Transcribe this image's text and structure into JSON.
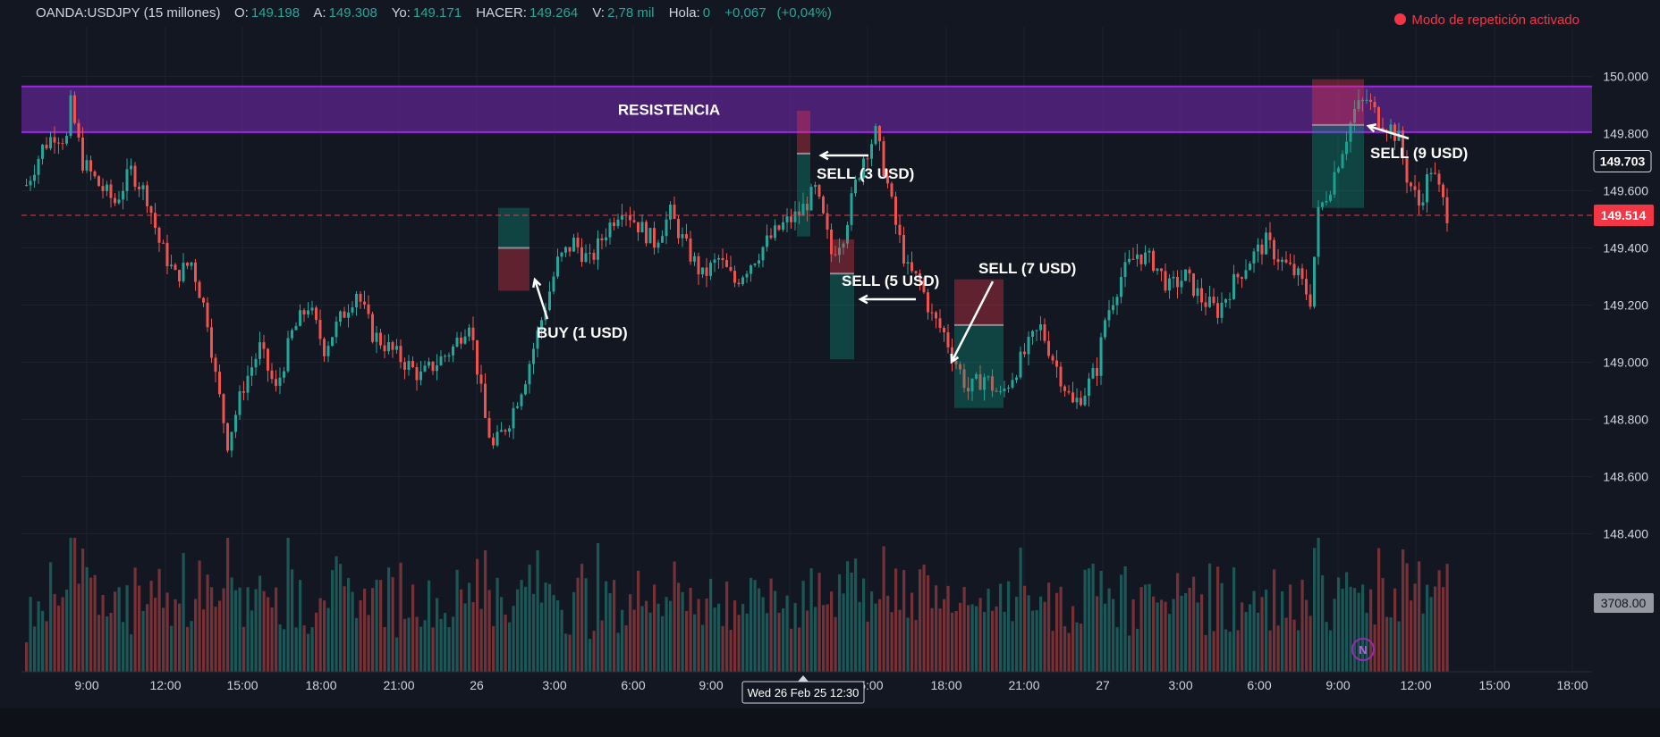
{
  "header": {
    "symbol": "OANDA:USDJPY (15 millones)",
    "fields": [
      {
        "label": "O:",
        "value": "149.198"
      },
      {
        "label": "A:",
        "value": "149.308"
      },
      {
        "label": "Yo:",
        "value": "149.171"
      },
      {
        "label": "HACER:",
        "value": "149.264"
      },
      {
        "label": "V:",
        "value": "2,78 mil"
      },
      {
        "label": "Hola:",
        "value": "0"
      }
    ],
    "change": "+0,067",
    "change_pct": "(+0,04%)"
  },
  "replay_label": "Modo de repetición activado",
  "colors": {
    "background": "#131722",
    "up": "#26a69a",
    "down": "#ef5350",
    "resistance": "#9c27e0",
    "price_line": "#f23645"
  },
  "chart_data": {
    "type": "candlestick",
    "x_tick_labels": [
      "9:00",
      "12:00",
      "15:00",
      "18:00",
      "21:00",
      "26",
      "3:00",
      "6:00",
      "9:00",
      "12:00",
      "15:00",
      "18:00",
      "21:00",
      "27",
      "3:00",
      "6:00",
      "9:00",
      "12:00",
      "15:00",
      "18:00"
    ],
    "y_tick_labels": [
      "150.000",
      "149.800",
      "149.600",
      "149.400",
      "149.200",
      "149.000",
      "148.800",
      "148.600",
      "148.400"
    ],
    "y_range": [
      148.27,
      150.12
    ],
    "crosshair_time_label": "Wed 26 Feb 25 12:30",
    "current_price_label": "149.514",
    "marker_price_label": "149.703",
    "volume_label": "3708.00",
    "resistance_zone": {
      "label": "RESISTENCIA",
      "top": 149.965,
      "bottom": 149.805
    },
    "annotations": [
      {
        "text": "BUY (1 USD)"
      },
      {
        "text": "SELL (3 USD)"
      },
      {
        "text": "SELL (5 USD)"
      },
      {
        "text": "SELL (7 USD)"
      },
      {
        "text": "SELL (9 USD)"
      }
    ],
    "trades": [
      {
        "side": "buy",
        "entry": 149.4,
        "stop": 149.25,
        "target": 149.54
      },
      {
        "side": "sell",
        "entry": 149.73,
        "stop": 149.88,
        "target": 149.44
      },
      {
        "side": "sell",
        "entry": 149.31,
        "stop": 149.43,
        "target": 149.01
      },
      {
        "side": "sell",
        "entry": 149.13,
        "stop": 149.29,
        "target": 148.84
      },
      {
        "side": "sell",
        "entry": 149.83,
        "stop": 149.99,
        "target": 149.54
      }
    ],
    "price_path": [
      [
        0,
        149.62
      ],
      [
        4,
        149.75
      ],
      [
        7,
        149.8
      ],
      [
        10,
        149.78
      ],
      [
        11,
        149.9
      ],
      [
        14,
        149.7
      ],
      [
        18,
        149.62
      ],
      [
        22,
        149.56
      ],
      [
        26,
        149.67
      ],
      [
        30,
        149.58
      ],
      [
        33,
        149.42
      ],
      [
        37,
        149.3
      ],
      [
        41,
        149.35
      ],
      [
        45,
        149.15
      ],
      [
        47,
        148.95
      ],
      [
        50,
        148.72
      ],
      [
        54,
        148.92
      ],
      [
        58,
        149.05
      ],
      [
        62,
        148.9
      ],
      [
        66,
        149.1
      ],
      [
        70,
        149.2
      ],
      [
        74,
        149.05
      ],
      [
        78,
        149.15
      ],
      [
        82,
        149.25
      ],
      [
        86,
        149.1
      ],
      [
        90,
        149.05
      ],
      [
        94,
        149.0
      ],
      [
        98,
        148.95
      ],
      [
        102,
        149.0
      ],
      [
        106,
        149.05
      ],
      [
        110,
        149.15
      ],
      [
        112,
        148.98
      ],
      [
        114,
        148.8
      ],
      [
        116,
        148.7
      ],
      [
        120,
        148.8
      ],
      [
        124,
        148.95
      ],
      [
        128,
        149.15
      ],
      [
        132,
        149.35
      ],
      [
        136,
        149.42
      ],
      [
        140,
        149.35
      ],
      [
        144,
        149.46
      ],
      [
        148,
        149.55
      ],
      [
        152,
        149.48
      ],
      [
        156,
        149.42
      ],
      [
        160,
        149.52
      ],
      [
        164,
        149.4
      ],
      [
        168,
        149.3
      ],
      [
        172,
        149.36
      ],
      [
        176,
        149.28
      ],
      [
        180,
        149.35
      ],
      [
        184,
        149.42
      ],
      [
        188,
        149.48
      ],
      [
        192,
        149.52
      ],
      [
        196,
        149.6
      ],
      [
        198,
        149.5
      ],
      [
        200,
        149.38
      ],
      [
        203,
        149.45
      ],
      [
        206,
        149.62
      ],
      [
        208,
        149.72
      ],
      [
        211,
        149.8
      ],
      [
        214,
        149.62
      ],
      [
        216,
        149.48
      ],
      [
        219,
        149.32
      ],
      [
        222,
        149.28
      ],
      [
        225,
        149.16
      ],
      [
        228,
        149.1
      ],
      [
        231,
        149.0
      ],
      [
        234,
        148.9
      ],
      [
        238,
        148.95
      ],
      [
        242,
        148.88
      ],
      [
        246,
        148.98
      ],
      [
        250,
        149.08
      ],
      [
        252,
        149.12
      ],
      [
        254,
        149.05
      ],
      [
        257,
        148.95
      ],
      [
        260,
        148.85
      ],
      [
        263,
        148.9
      ],
      [
        266,
        148.98
      ],
      [
        268,
        149.15
      ],
      [
        272,
        149.3
      ],
      [
        276,
        149.38
      ],
      [
        280,
        149.35
      ],
      [
        284,
        149.26
      ],
      [
        288,
        149.3
      ],
      [
        292,
        149.22
      ],
      [
        296,
        149.18
      ],
      [
        300,
        149.28
      ],
      [
        304,
        149.36
      ],
      [
        308,
        149.42
      ],
      [
        312,
        149.35
      ],
      [
        316,
        149.3
      ],
      [
        319,
        149.22
      ],
      [
        321,
        149.52
      ],
      [
        324,
        149.62
      ],
      [
        327,
        149.75
      ],
      [
        330,
        149.88
      ],
      [
        333,
        149.92
      ],
      [
        336,
        149.85
      ],
      [
        339,
        149.82
      ],
      [
        341,
        149.78
      ],
      [
        343,
        149.65
      ],
      [
        346,
        149.55
      ],
      [
        349,
        149.68
      ],
      [
        351,
        149.6
      ],
      [
        353,
        149.52
      ]
    ]
  }
}
